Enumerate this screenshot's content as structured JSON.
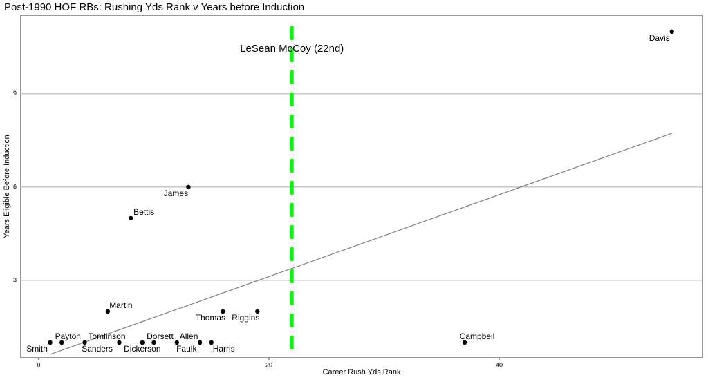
{
  "chart_data": {
    "type": "scatter",
    "title": "Post-1990 HOF RBs: Rushing Yds Rank v Years before Induction",
    "x_label": "Career Rush Yds Rank",
    "y_label": "Years Eligible Before Induction",
    "labels": [
      "Smith",
      "Payton",
      "Sanders",
      "Tomlinson",
      "Dickerson",
      "Dorsett",
      "Faulk",
      "Allen",
      "Harris",
      "Martin",
      "Bettis",
      "James",
      "Thomas",
      "Riggins",
      "Campbell",
      "Davis"
    ],
    "x": [
      1,
      2,
      4,
      7,
      9,
      10,
      12,
      14,
      15,
      6,
      8,
      13,
      16,
      19,
      37,
      55
    ],
    "values": [
      1,
      1,
      1,
      1,
      1,
      1,
      1,
      1,
      1,
      2,
      5,
      6,
      2,
      2,
      1,
      11
    ],
    "color": "#000000",
    "trendline": {
      "x": [
        1,
        55
      ],
      "y": [
        0.62,
        7.73
      ],
      "color": "#808080"
    },
    "reference_line": {
      "x": 22,
      "label": "LeSean McCoy (22nd)",
      "color": "#00ff00"
    },
    "xlim": [
      -1.56,
      57.66
    ],
    "ylim": [
      0.51,
      11.53
    ],
    "xticks": [
      0,
      20,
      40
    ],
    "yticks": [
      3,
      6,
      9
    ],
    "grid": true
  }
}
